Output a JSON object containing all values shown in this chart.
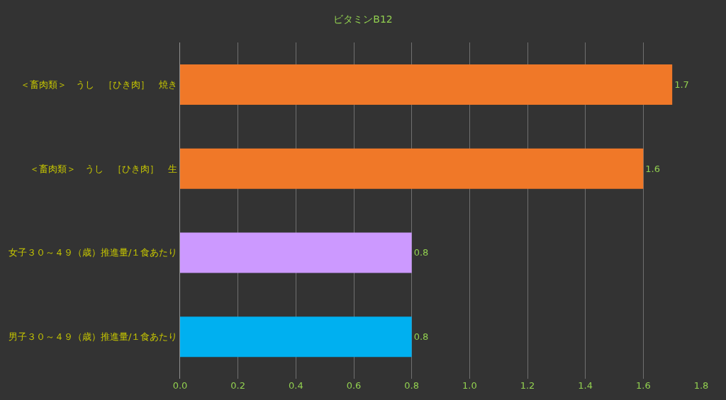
{
  "chart_data": {
    "type": "bar",
    "orientation": "horizontal",
    "title": "ビタミンB12",
    "categories": [
      "＜畜肉類＞　うし　［ひき肉］　焼き",
      "＜畜肉類＞　うし　［ひき肉］　生",
      "女子３０～４９（歳）推進量/１食あたり",
      "男子３０～４９（歳）推進量/１食あたり"
    ],
    "values": [
      1.7,
      1.6,
      0.8,
      0.8
    ],
    "colors": [
      "#f07828",
      "#f07828",
      "#cc99ff",
      "#00b0f0"
    ],
    "xlim": [
      0,
      1.8
    ],
    "xticks": [
      {
        "value": 0,
        "label": "0.0"
      },
      0.2,
      0.4,
      0.6,
      0.8,
      {
        "value": 1,
        "label": "1.0"
      },
      1.2,
      1.4,
      1.6,
      1.8
    ],
    "grid": "x",
    "data_labels": true
  }
}
